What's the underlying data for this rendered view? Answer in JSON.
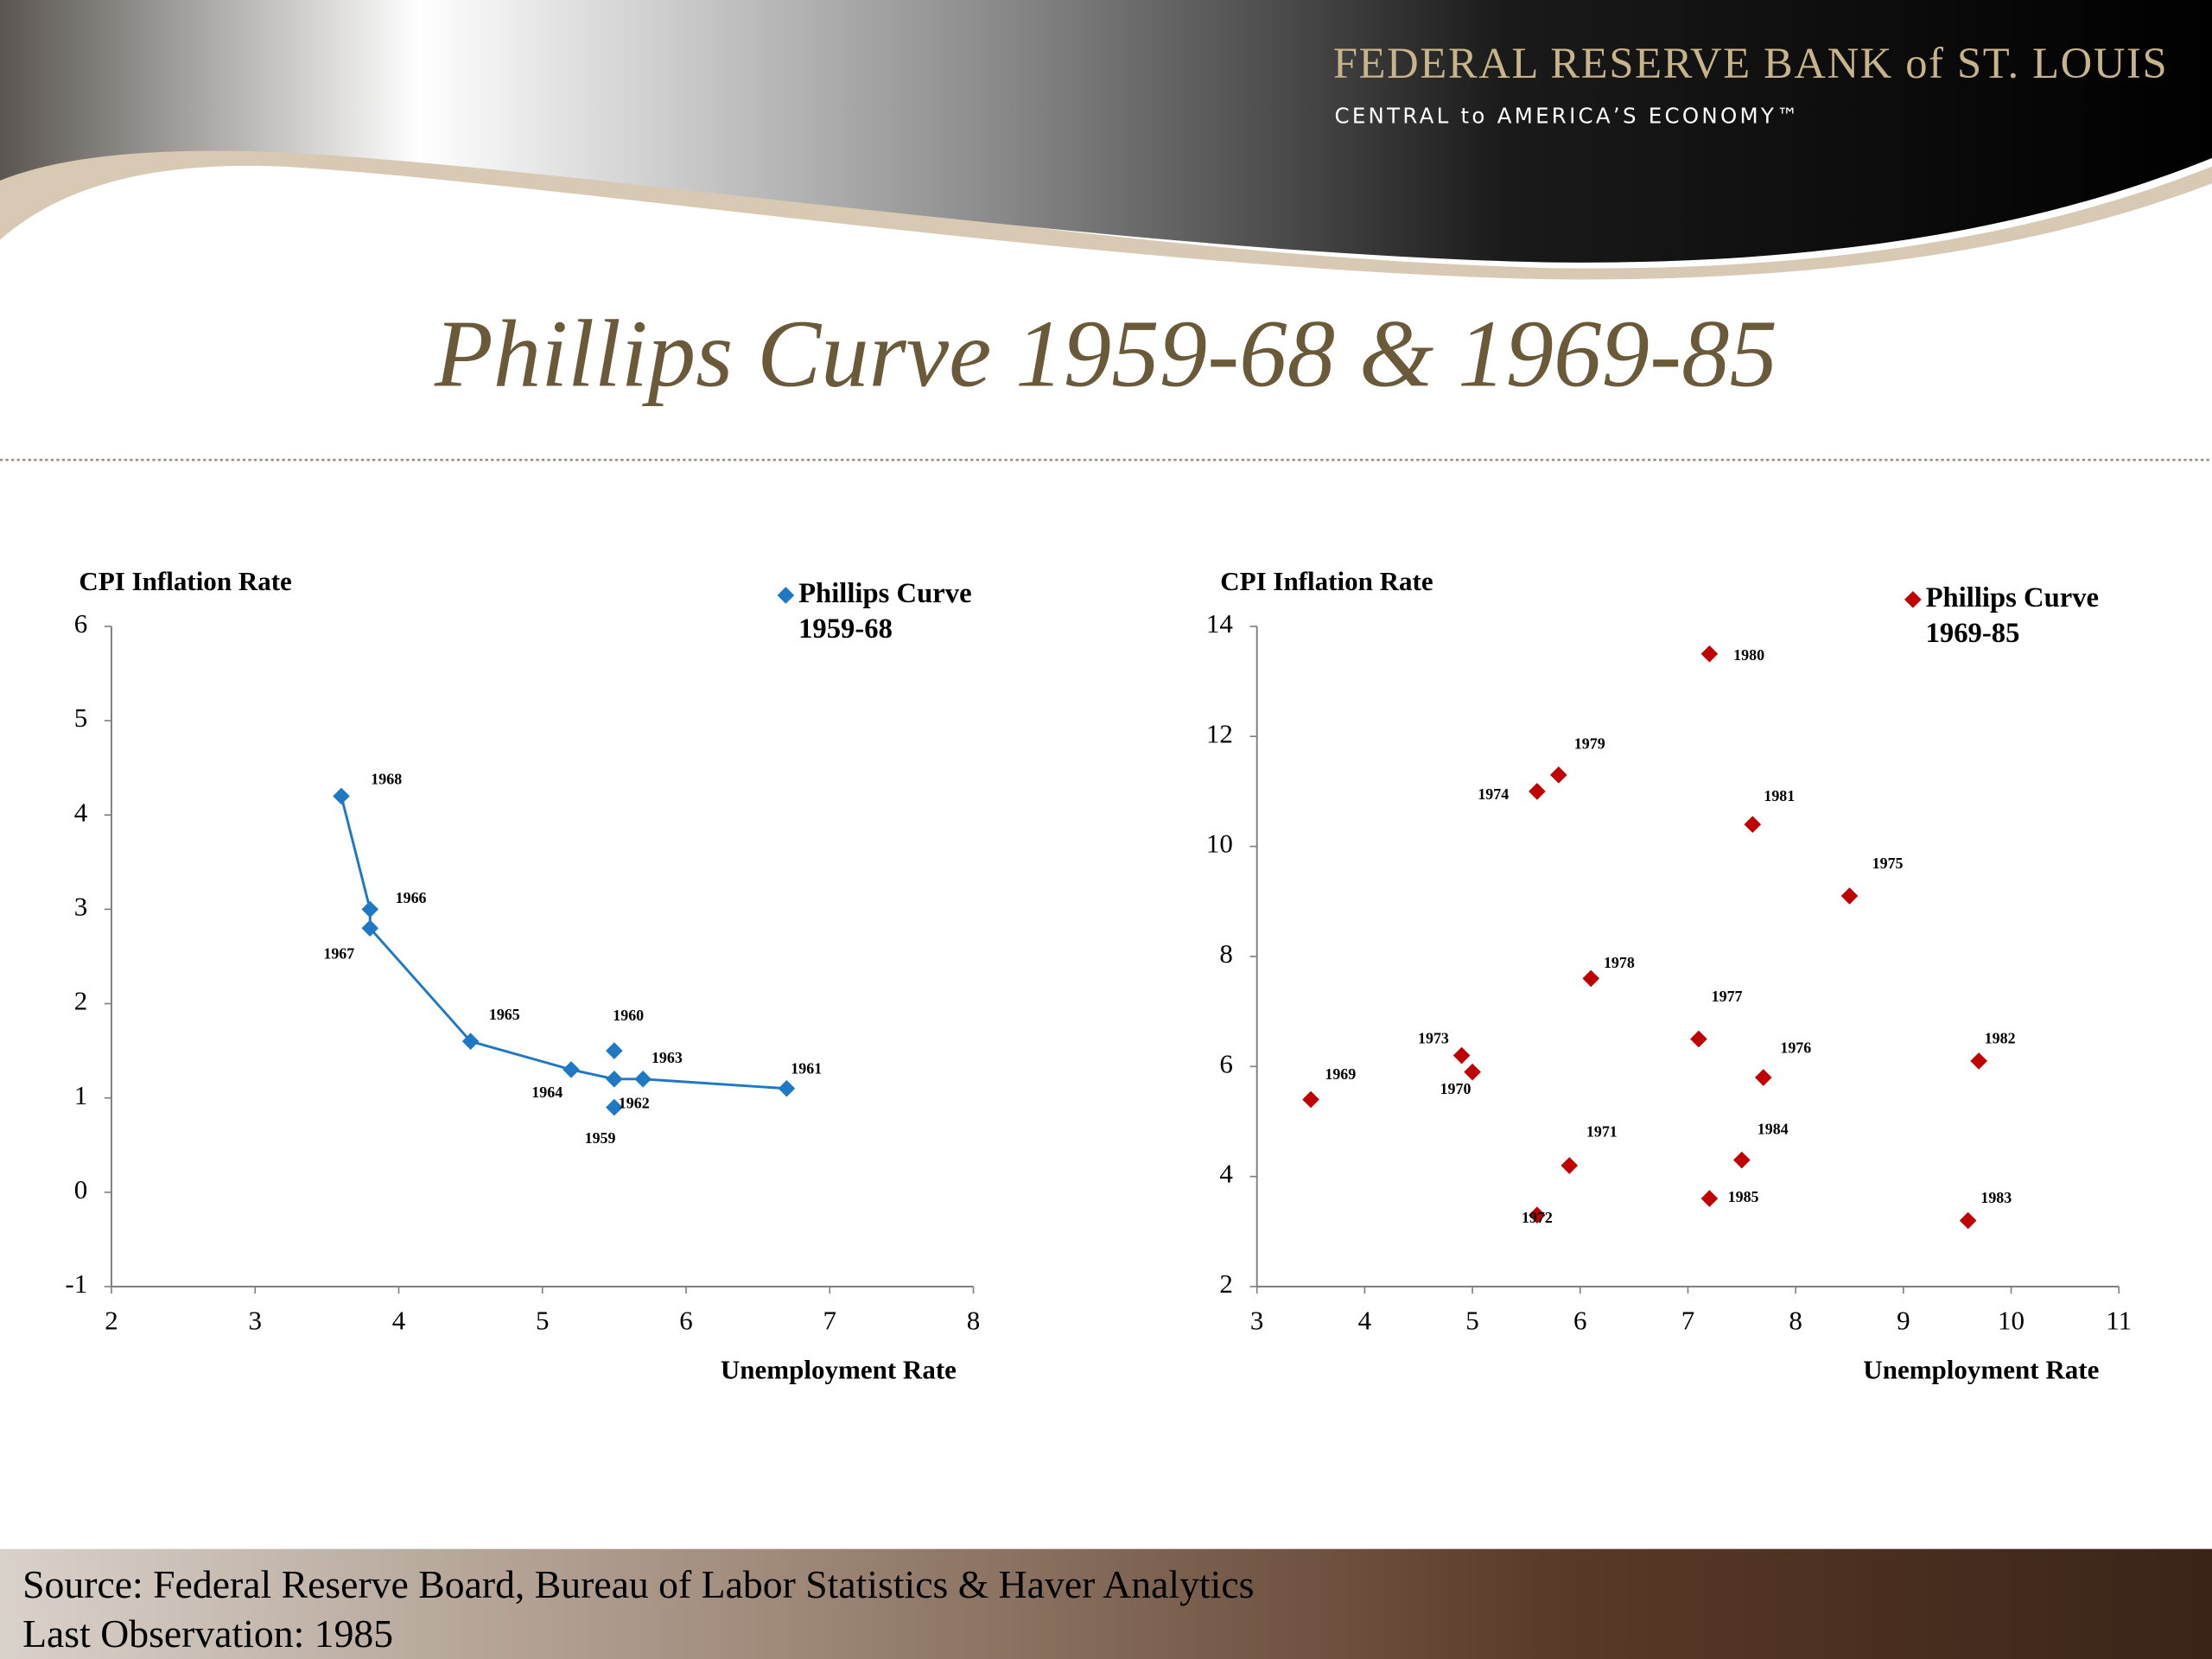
{
  "header": {
    "org": "FEDERAL RESERVE BANK of ST. LOUIS",
    "tagline": "CENTRAL to AMERICA’S ECONOMY™"
  },
  "title": "Phillips Curve 1959-68 & 1969-85",
  "source": "Source: Federal Reserve Board, Bureau of Labor Statistics & Haver Analytics",
  "last_observation": "Last Observation: 1985",
  "chart_data": [
    {
      "type": "scatter",
      "y_label": "CPI Inflation Rate",
      "x_label": "Unemployment Rate",
      "xlim": [
        2,
        8
      ],
      "xticks": [
        2,
        3,
        4,
        5,
        6,
        7,
        8
      ],
      "ylim": [
        -1,
        6
      ],
      "yticks": [
        -1,
        0,
        1,
        2,
        3,
        4,
        5,
        6
      ],
      "series": [
        {
          "name": "Phillips Curve 1959-68",
          "color": "#1f78c4",
          "point_labels": [
            "1959",
            "1960",
            "1961",
            "1962",
            "1963",
            "1964",
            "1965",
            "1966",
            "1967",
            "1968"
          ],
          "x": [
            5.5,
            5.5,
            6.7,
            5.5,
            5.7,
            5.2,
            4.5,
            3.8,
            3.8,
            3.6
          ],
          "values": [
            0.9,
            1.5,
            1.1,
            1.2,
            1.2,
            1.3,
            1.6,
            3.0,
            2.8,
            4.2
          ]
        }
      ],
      "trendline": {
        "color": "#1f78c4",
        "x": [
          3.6,
          3.8,
          3.8,
          4.5,
          5.2,
          5.5,
          5.7,
          6.7
        ],
        "values": [
          4.2,
          3.0,
          2.8,
          1.6,
          1.3,
          1.2,
          1.2,
          1.1
        ]
      }
    },
    {
      "type": "scatter",
      "y_label": "CPI Inflation Rate",
      "x_label": "Unemployment Rate",
      "xlim": [
        3,
        11
      ],
      "xticks": [
        3,
        4,
        5,
        6,
        7,
        8,
        9,
        10,
        11
      ],
      "ylim": [
        2,
        14
      ],
      "yticks": [
        2,
        4,
        6,
        8,
        10,
        12,
        14
      ],
      "series": [
        {
          "name": "Phillips Curve 1969-85",
          "color": "#c00000",
          "point_labels": [
            "1969",
            "1970",
            "1971",
            "1972",
            "1973",
            "1974",
            "1975",
            "1976",
            "1977",
            "1978",
            "1979",
            "1980",
            "1981",
            "1982",
            "1983",
            "1984",
            "1985"
          ],
          "x": [
            3.5,
            5.0,
            5.9,
            5.6,
            4.9,
            5.6,
            8.5,
            7.7,
            7.1,
            6.1,
            5.8,
            7.2,
            7.6,
            9.7,
            9.6,
            7.5,
            7.2
          ],
          "values": [
            5.4,
            5.9,
            4.2,
            3.3,
            6.2,
            11.0,
            9.1,
            5.8,
            6.5,
            7.6,
            11.3,
            13.5,
            10.4,
            6.1,
            3.2,
            4.3,
            3.6
          ]
        }
      ]
    }
  ]
}
